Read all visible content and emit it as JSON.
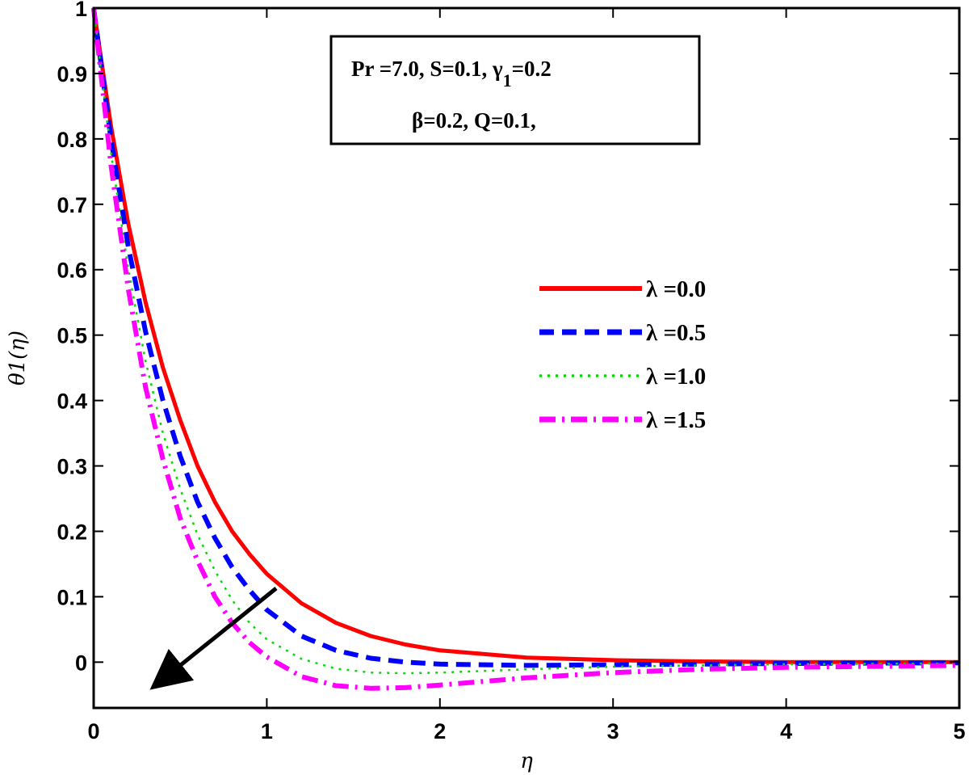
{
  "chart_data": {
    "type": "line",
    "xlabel": "η",
    "ylabel": "θ1(η)",
    "xlim": [
      0,
      5
    ],
    "ylim": [
      -0.07,
      1.0
    ],
    "xticks": [
      "0",
      "1",
      "2",
      "3",
      "4",
      "5"
    ],
    "yticks": [
      "1",
      "0.9",
      "0.8",
      "0.7",
      "0.6",
      "0.5",
      "0.4",
      "0.3",
      "0.2",
      "0.1",
      "0"
    ],
    "grid": false,
    "legend_position": "right-middle",
    "annotation_line1": "Pr =7.0, S=0.1, γ",
    "annotation_sub": "1",
    "annotation_line1_tail": "=0.2",
    "annotation_line2": "β=0.2, Q=0.1,",
    "arrow_note": "arrow indicates decreasing θ1 with increasing λ",
    "series": [
      {
        "name": "λ =0.0",
        "color": "#ff0000",
        "style": "solid",
        "x": [
          0,
          0.1,
          0.2,
          0.3,
          0.4,
          0.5,
          0.6,
          0.7,
          0.8,
          0.9,
          1.0,
          1.2,
          1.4,
          1.6,
          1.8,
          2.0,
          2.5,
          3.0,
          3.5,
          4.0,
          5.0
        ],
        "y": [
          1.0,
          0.82,
          0.67,
          0.55,
          0.45,
          0.37,
          0.3,
          0.245,
          0.2,
          0.165,
          0.135,
          0.09,
          0.06,
          0.04,
          0.027,
          0.018,
          0.007,
          0.003,
          0.001,
          0.0,
          0.0
        ]
      },
      {
        "name": "λ =0.5",
        "color": "#0000ff",
        "style": "dashed",
        "x": [
          0,
          0.1,
          0.2,
          0.3,
          0.4,
          0.5,
          0.6,
          0.7,
          0.8,
          0.9,
          1.0,
          1.2,
          1.4,
          1.6,
          1.8,
          2.0,
          2.5,
          3.0,
          3.5,
          4.0,
          5.0
        ],
        "y": [
          1.0,
          0.8,
          0.635,
          0.505,
          0.4,
          0.315,
          0.245,
          0.19,
          0.145,
          0.11,
          0.08,
          0.04,
          0.018,
          0.006,
          0.0,
          -0.003,
          -0.005,
          -0.004,
          -0.003,
          -0.002,
          -0.001
        ]
      },
      {
        "name": "λ =1.0",
        "color": "#00dd00",
        "style": "dotted",
        "x": [
          0,
          0.1,
          0.2,
          0.3,
          0.4,
          0.5,
          0.6,
          0.7,
          0.8,
          0.9,
          1.0,
          1.2,
          1.4,
          1.6,
          1.8,
          2.0,
          2.5,
          3.0,
          3.5,
          4.0,
          5.0
        ],
        "y": [
          1.0,
          0.78,
          0.6,
          0.46,
          0.35,
          0.265,
          0.195,
          0.14,
          0.095,
          0.06,
          0.035,
          0.005,
          -0.01,
          -0.016,
          -0.017,
          -0.016,
          -0.011,
          -0.007,
          -0.005,
          -0.003,
          -0.002
        ]
      },
      {
        "name": "λ =1.5",
        "color": "#ff00ff",
        "style": "dashdot",
        "x": [
          0,
          0.1,
          0.2,
          0.3,
          0.4,
          0.5,
          0.6,
          0.7,
          0.8,
          0.9,
          1.0,
          1.2,
          1.4,
          1.6,
          1.8,
          2.0,
          2.5,
          3.0,
          3.5,
          4.0,
          5.0
        ],
        "y": [
          1.0,
          0.76,
          0.57,
          0.42,
          0.31,
          0.22,
          0.155,
          0.1,
          0.06,
          0.03,
          0.008,
          -0.022,
          -0.036,
          -0.04,
          -0.039,
          -0.035,
          -0.024,
          -0.016,
          -0.011,
          -0.008,
          -0.005
        ]
      }
    ]
  }
}
